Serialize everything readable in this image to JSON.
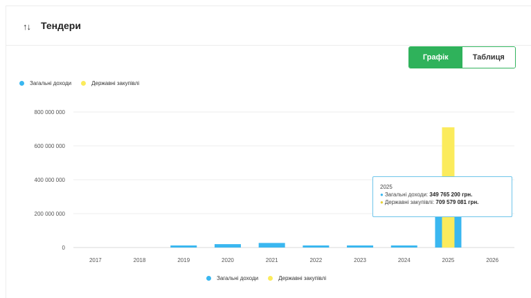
{
  "header": {
    "icon": "sort-arrows-icon",
    "title": "Тендери"
  },
  "toggle": {
    "chart_label": "Графік",
    "table_label": "Таблиця"
  },
  "legend": {
    "items": [
      {
        "label": "Загальні доходи",
        "color": "#3ab7f0"
      },
      {
        "label": "Державні закупівлі",
        "color": "#fbeb5c"
      }
    ]
  },
  "tooltip": {
    "year": "2025",
    "line1_label": "Загальні доходи:",
    "line1_value": "349 765 200 грн.",
    "line2_label": "Державні закупівлі:",
    "line2_value": "709 579 081 грн."
  },
  "chart_data": {
    "type": "bar",
    "categories": [
      "2017",
      "2018",
      "2019",
      "2020",
      "2021",
      "2022",
      "2023",
      "2024",
      "2025",
      "2026"
    ],
    "series": [
      {
        "name": "Загальні доходи",
        "color": "#3ab7f0",
        "values": [
          0,
          0,
          10000000,
          20000000,
          27000000,
          10000000,
          10000000,
          10000000,
          349765200,
          0
        ]
      },
      {
        "name": "Державні закупівлі",
        "color": "#fbeb5c",
        "values": [
          0,
          0,
          0,
          0,
          0,
          0,
          0,
          0,
          709579081,
          0
        ]
      }
    ],
    "ylim": [
      0,
      800000000
    ],
    "yticks": [
      0,
      200000000,
      400000000,
      600000000,
      800000000
    ],
    "ytick_labels": [
      "0",
      "200 000 000",
      "400 000 000",
      "600 000 000",
      "800 000 000"
    ],
    "grid": true,
    "legend": "top-left and bottom-center"
  }
}
